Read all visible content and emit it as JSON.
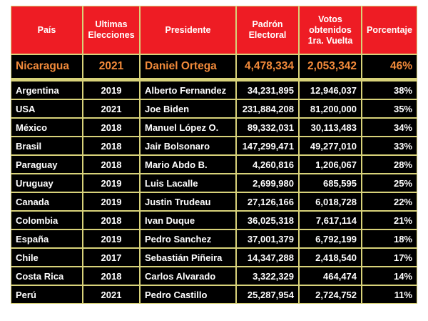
{
  "headers": {
    "pais": "País",
    "elecciones": [
      "Ultimas",
      "Elecciones"
    ],
    "presidente": "Presidente",
    "padron": [
      "Padrón",
      "Electoral"
    ],
    "votos": [
      "Votos",
      "obtenidos",
      "1ra. Vuelta"
    ],
    "porcentaje": "Porcentaje"
  },
  "colors": {
    "header_bg": "#ee1c24",
    "highlight_text": "#f28a3a",
    "row_bg": "#000000",
    "border": "#d8d27a"
  },
  "rows": [
    {
      "pais": "Nicaragua",
      "year": "2021",
      "presidente": "Daniel Ortega",
      "padron": "4,478,334",
      "votos": "2,053,342",
      "pct": "46%"
    },
    {
      "pais": "Argentina",
      "year": "2019",
      "presidente": "Alberto Fernandez",
      "padron": "34,231,895",
      "votos": "12,946,037",
      "pct": "38%"
    },
    {
      "pais": "USA",
      "year": "2021",
      "presidente": "Joe Biden",
      "padron": "231,884,208",
      "votos": "81,200,000",
      "pct": "35%"
    },
    {
      "pais": "México",
      "year": "2018",
      "presidente": "Manuel López O.",
      "padron": "89,332,031",
      "votos": "30,113,483",
      "pct": "34%"
    },
    {
      "pais": "Brasil",
      "year": "2018",
      "presidente": "Jair Bolsonaro",
      "padron": "147,299,471",
      "votos": "49,277,010",
      "pct": "33%"
    },
    {
      "pais": "Paraguay",
      "year": "2018",
      "presidente": "Mario Abdo B.",
      "padron": "4,260,816",
      "votos": "1,206,067",
      "pct": "28%"
    },
    {
      "pais": "Uruguay",
      "year": "2019",
      "presidente": "Luis Lacalle",
      "padron": "2,699,980",
      "votos": "685,595",
      "pct": "25%"
    },
    {
      "pais": "Canada",
      "year": "2019",
      "presidente": "Justin Trudeau",
      "padron": "27,126,166",
      "votos": "6,018,728",
      "pct": "22%"
    },
    {
      "pais": "Colombia",
      "year": "2018",
      "presidente": "Ivan Duque",
      "padron": "36,025,318",
      "votos": "7,617,114",
      "pct": "21%"
    },
    {
      "pais": "España",
      "year": "2019",
      "presidente": "Pedro Sanchez",
      "padron": "37,001,379",
      "votos": "6,792,199",
      "pct": "18%"
    },
    {
      "pais": "Chile",
      "year": "2017",
      "presidente": "Sebastián Piñeira",
      "padron": "14,347,288",
      "votos": "2,418,540",
      "pct": "17%"
    },
    {
      "pais": "Costa Rica",
      "year": "2018",
      "presidente": "Carlos Alvarado",
      "padron": "3,322,329",
      "votos": "464,474",
      "pct": "14%"
    },
    {
      "pais": "Perú",
      "year": "2021",
      "presidente": "Pedro Castillo",
      "padron": "25,287,954",
      "votos": "2,724,752",
      "pct": "11%"
    }
  ]
}
